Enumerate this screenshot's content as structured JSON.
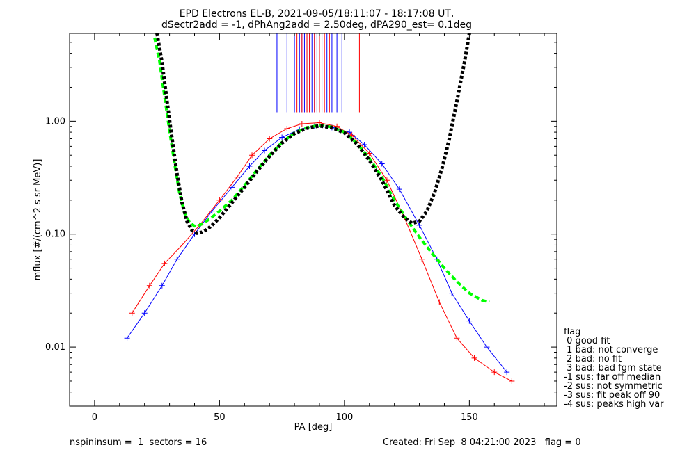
{
  "chart_data": {
    "type": "scatter",
    "title_line1": "EPD Electrons EL-B, 2021-09-05/18:11:07 - 18:17:08 UT,",
    "title_line2": "dSectr2add = -1, dPhAng2add = 2.50deg, dPA290_est=   0.1deg",
    "xlabel": "PA [deg]",
    "ylabel": "mflux [#/(cm^2 s sr MeV)]",
    "xlim": [
      -10,
      185
    ],
    "ylim": [
      0.003,
      6.0
    ],
    "yscale": "log",
    "xticks": [
      0,
      50,
      100,
      150
    ],
    "xtick_labels": [
      "0",
      "50",
      "100",
      "150"
    ],
    "yticks": [
      0.01,
      0.1,
      1.0
    ],
    "ytick_labels": [
      "0.01",
      "0.10",
      "1.00"
    ],
    "grid": false,
    "colors": {
      "blue": "#0000ff",
      "red": "#ff0000",
      "green": "#00ff00",
      "black": "#000000"
    },
    "series": [
      {
        "name": "",
        "color": "#0000ff",
        "style": "line+plus",
        "x": [
          13,
          20,
          27,
          33,
          40,
          47,
          55,
          62,
          68,
          75,
          82,
          88,
          95,
          102,
          108,
          115,
          122,
          130,
          137,
          143,
          150,
          157,
          165
        ],
        "values": [
          0.012,
          0.02,
          0.035,
          0.06,
          0.1,
          0.16,
          0.26,
          0.4,
          0.55,
          0.72,
          0.85,
          0.9,
          0.88,
          0.8,
          0.62,
          0.42,
          0.25,
          0.12,
          0.06,
          0.03,
          0.017,
          0.01,
          0.006
        ]
      },
      {
        "name": "",
        "color": "#ff0000",
        "style": "line+plus",
        "x": [
          15,
          22,
          28,
          35,
          42,
          50,
          57,
          63,
          70,
          77,
          83,
          90,
          97,
          103,
          110,
          117,
          124,
          131,
          138,
          145,
          152,
          160,
          167
        ],
        "values": [
          0.02,
          0.035,
          0.055,
          0.08,
          0.12,
          0.2,
          0.32,
          0.5,
          0.7,
          0.86,
          0.95,
          0.97,
          0.9,
          0.75,
          0.52,
          0.3,
          0.14,
          0.06,
          0.025,
          0.012,
          0.008,
          0.006,
          0.005
        ]
      },
      {
        "name": "",
        "color": "#00ff00",
        "style": "dashed-fit",
        "x": [
          24,
          26,
          28,
          30,
          32,
          34,
          36,
          38,
          40,
          42,
          44,
          46,
          50,
          55,
          60,
          65,
          70,
          75,
          80,
          85,
          90,
          95,
          100,
          105,
          110,
          115,
          120,
          125,
          130,
          135,
          140,
          145,
          150,
          155,
          158
        ],
        "values": [
          5.5,
          3.4,
          1.65,
          0.82,
          0.42,
          0.23,
          0.155,
          0.127,
          0.118,
          0.12,
          0.127,
          0.136,
          0.16,
          0.2,
          0.27,
          0.37,
          0.5,
          0.65,
          0.79,
          0.88,
          0.92,
          0.89,
          0.8,
          0.64,
          0.47,
          0.32,
          0.2,
          0.135,
          0.094,
          0.068,
          0.05,
          0.038,
          0.03,
          0.026,
          0.025
        ]
      },
      {
        "name": "",
        "color": "#000000",
        "style": "dotted-fit",
        "x": [
          25,
          27,
          29,
          31,
          33,
          35,
          37,
          39,
          41,
          43,
          45,
          47,
          50,
          55,
          60,
          65,
          70,
          75,
          80,
          85,
          90,
          95,
          100,
          105,
          110,
          115,
          120,
          124,
          127,
          130,
          133,
          136,
          139,
          142,
          145,
          148,
          150
        ],
        "values": [
          6.0,
          3.3,
          1.5,
          0.7,
          0.34,
          0.19,
          0.13,
          0.108,
          0.102,
          0.104,
          0.11,
          0.12,
          0.14,
          0.19,
          0.26,
          0.36,
          0.49,
          0.64,
          0.78,
          0.87,
          0.91,
          0.88,
          0.79,
          0.63,
          0.45,
          0.3,
          0.18,
          0.14,
          0.125,
          0.13,
          0.16,
          0.23,
          0.38,
          0.7,
          1.5,
          3.3,
          6.0
        ]
      }
    ],
    "spikes": {
      "blue": [
        73,
        77,
        80,
        82,
        83,
        84,
        85,
        86,
        87,
        88,
        89,
        90,
        91,
        93,
        95,
        97,
        99
      ],
      "red": [
        79,
        81,
        83,
        85,
        86,
        88,
        90,
        92,
        94,
        106
      ],
      "ymin": 1.2
    }
  },
  "legend": {
    "title": "flag",
    "items": [
      " 0 good fit",
      " 1 bad: not converge",
      " 2 bad: no fit",
      " 3 bad: bad fgm state",
      "-1 sus: far off median",
      "-2 sus: not symmetric",
      "-3 sus: fit peak off 90",
      "-4 sus: peaks high var"
    ]
  },
  "footer": {
    "left": "nspininsum =  1  sectors = 16",
    "right": "Created: Fri Sep  8 04:21:00 2023   flag = 0"
  }
}
